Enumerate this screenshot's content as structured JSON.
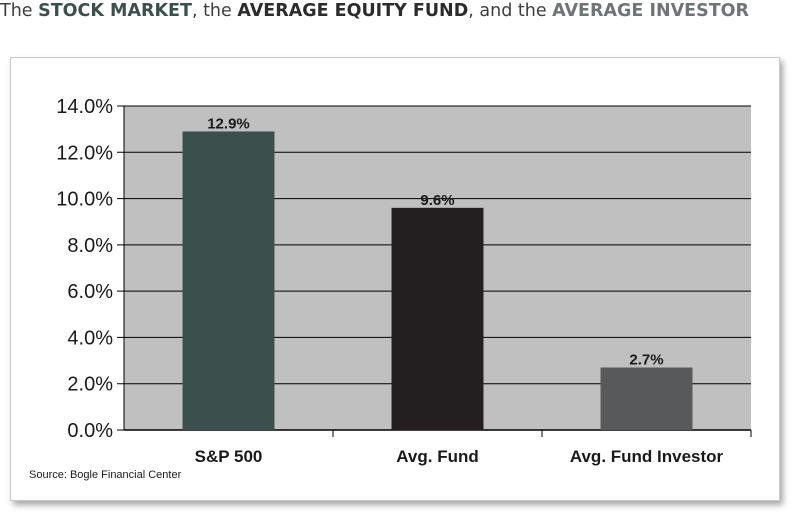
{
  "header": {
    "pre": "The ",
    "term1": "STOCK MARKET",
    "mid1": ", the ",
    "term2": "AVERAGE EQUITY FUND",
    "mid2": ", and the ",
    "term3": "AVERAGE INVESTOR"
  },
  "chart_data": {
    "type": "bar",
    "categories": [
      "S&P 500",
      "Avg. Fund",
      "Avg. Fund Investor"
    ],
    "values": [
      12.9,
      9.6,
      2.7
    ],
    "data_labels": [
      "12.9%",
      "9.6%",
      "2.7%"
    ],
    "ylim": [
      0,
      14
    ],
    "yticks": [
      0,
      2,
      4,
      6,
      8,
      10,
      12,
      14
    ],
    "ytick_labels": [
      "0.0%",
      "2.0%",
      "4.0%",
      "6.0%",
      "8.0%",
      "10.0%",
      "12.0%",
      "14.0%"
    ],
    "grid": true,
    "legend": "none",
    "colors": {
      "plot_bg": "#c0c0c0",
      "bars": [
        "#3b504c",
        "#231f20",
        "#58595b"
      ],
      "grid": "#000000"
    }
  },
  "source": "Source: Bogle Financial Center"
}
